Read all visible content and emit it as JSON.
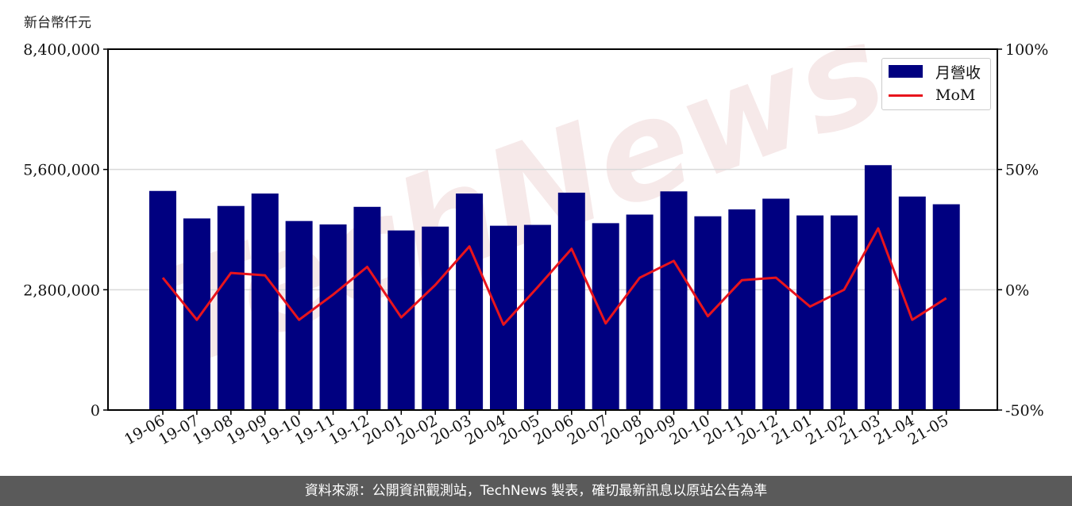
{
  "unit_label": "新台幣仟元",
  "footer_text": "資料來源：公開資訊觀測站，TechNews 製表，確切最新訊息以原站公告為準",
  "watermark": "TechNews",
  "colors": {
    "bar": "#000080",
    "line": "#e8141c",
    "grid": "#d9d9d9",
    "footer_bg": "#5a5a5a",
    "watermark": "#f0d8d8"
  },
  "legend": {
    "placement": "top-right",
    "bar_label": "月營收",
    "line_label": "MoM"
  },
  "chart_data": {
    "type": "bar",
    "categories": [
      "19-06",
      "19-07",
      "19-08",
      "19-09",
      "19-10",
      "19-11",
      "19-12",
      "20-01",
      "20-02",
      "20-03",
      "20-04",
      "20-05",
      "20-06",
      "20-07",
      "20-08",
      "20-09",
      "20-10",
      "20-11",
      "20-12",
      "21-01",
      "21-02",
      "21-03",
      "21-04",
      "21-05"
    ],
    "series": [
      {
        "name": "月營收",
        "type": "bar",
        "axis": "left",
        "values": [
          5100000,
          4460000,
          4750000,
          5040000,
          4400000,
          4320000,
          4730000,
          4180000,
          4270000,
          5040000,
          4290000,
          4310000,
          5060000,
          4350000,
          4550000,
          5090000,
          4510000,
          4670000,
          4920000,
          4530000,
          4530000,
          5700000,
          4970000,
          4790000
        ]
      },
      {
        "name": "MoM",
        "type": "line",
        "axis": "right",
        "values": [
          5,
          -12.5,
          7,
          6,
          -12.5,
          -2,
          9.5,
          -11.5,
          2,
          18,
          -14.5,
          1,
          17,
          -14,
          5,
          12,
          -11,
          4,
          5,
          -7,
          0,
          25.5,
          -12.5,
          -3.5
        ]
      }
    ],
    "y_left": {
      "ylim": [
        0,
        8400000
      ],
      "ticks": [
        "0",
        "2,800,000",
        "5,600,000",
        "8,400,000"
      ],
      "tick_values": [
        0,
        2800000,
        5600000,
        8400000
      ]
    },
    "y_right": {
      "ylim": [
        -50,
        100
      ],
      "ticks": [
        "-50%",
        "0%",
        "50%",
        "100%"
      ],
      "tick_values": [
        -50,
        0,
        50,
        100
      ]
    },
    "grid": "horizontal",
    "title": "",
    "xlabel": "",
    "ylabel": "新台幣仟元"
  }
}
